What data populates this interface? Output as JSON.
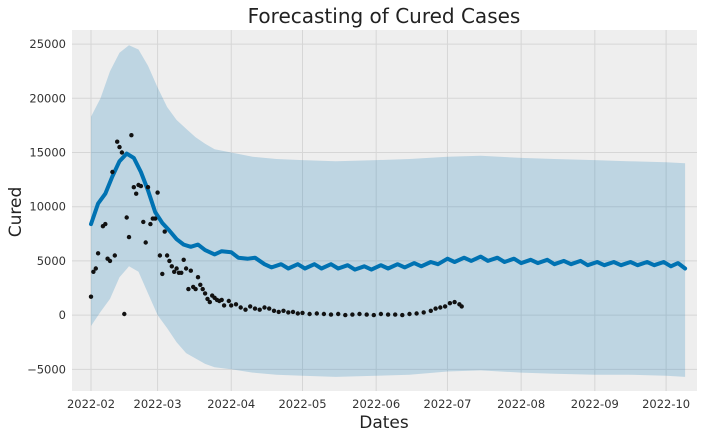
{
  "chart_data": {
    "type": "line",
    "title": "Forecasting of Cured Cases",
    "xlabel": "Dates",
    "ylabel": "Cured",
    "x_ticks": [
      "2022-02",
      "2022-03",
      "2022-04",
      "2022-05",
      "2022-06",
      "2022-07",
      "2022-08",
      "2022-09",
      "2022-10"
    ],
    "y_ticks": [
      -5000,
      0,
      5000,
      10000,
      15000,
      20000,
      25000
    ],
    "xlim": [
      "2022-01-24",
      "2022-10-14"
    ],
    "ylim": [
      -7000,
      26300
    ],
    "grid": true,
    "colors": {
      "forecast": "#0072b2",
      "interval": "#0072b2",
      "observed": "#111111",
      "plot_background": "#eeeeee",
      "grid": "#d6d6d6"
    },
    "forecast": [
      [
        "2022-02-01",
        8400
      ],
      [
        "2022-02-04",
        10300
      ],
      [
        "2022-02-07",
        11200
      ],
      [
        "2022-02-10",
        12800
      ],
      [
        "2022-02-13",
        14200
      ],
      [
        "2022-02-16",
        14900
      ],
      [
        "2022-02-19",
        14500
      ],
      [
        "2022-02-22",
        13200
      ],
      [
        "2022-02-25",
        11500
      ],
      [
        "2022-02-28",
        9500
      ],
      [
        "2022-03-03",
        8500
      ],
      [
        "2022-03-06",
        7800
      ],
      [
        "2022-03-09",
        7000
      ],
      [
        "2022-03-12",
        6500
      ],
      [
        "2022-03-15",
        6300
      ],
      [
        "2022-03-18",
        6500
      ],
      [
        "2022-03-21",
        6000
      ],
      [
        "2022-03-25",
        5600
      ],
      [
        "2022-03-28",
        5900
      ],
      [
        "2022-04-01",
        5800
      ],
      [
        "2022-04-04",
        5300
      ],
      [
        "2022-04-08",
        5200
      ],
      [
        "2022-04-11",
        5300
      ],
      [
        "2022-04-15",
        4700
      ],
      [
        "2022-04-18",
        4400
      ],
      [
        "2022-04-22",
        4700
      ],
      [
        "2022-04-25",
        4300
      ],
      [
        "2022-04-29",
        4700
      ],
      [
        "2022-05-02",
        4300
      ],
      [
        "2022-05-06",
        4700
      ],
      [
        "2022-05-09",
        4300
      ],
      [
        "2022-05-13",
        4700
      ],
      [
        "2022-05-16",
        4300
      ],
      [
        "2022-05-20",
        4600
      ],
      [
        "2022-05-23",
        4200
      ],
      [
        "2022-05-27",
        4500
      ],
      [
        "2022-05-30",
        4200
      ],
      [
        "2022-06-03",
        4600
      ],
      [
        "2022-06-06",
        4300
      ],
      [
        "2022-06-10",
        4700
      ],
      [
        "2022-06-13",
        4400
      ],
      [
        "2022-06-17",
        4800
      ],
      [
        "2022-06-20",
        4500
      ],
      [
        "2022-06-24",
        4900
      ],
      [
        "2022-06-27",
        4700
      ],
      [
        "2022-07-01",
        5200
      ],
      [
        "2022-07-04",
        4900
      ],
      [
        "2022-07-08",
        5300
      ],
      [
        "2022-07-11",
        5000
      ],
      [
        "2022-07-15",
        5400
      ],
      [
        "2022-07-18",
        5000
      ],
      [
        "2022-07-22",
        5300
      ],
      [
        "2022-07-25",
        4900
      ],
      [
        "2022-07-29",
        5200
      ],
      [
        "2022-08-01",
        4800
      ],
      [
        "2022-08-05",
        5100
      ],
      [
        "2022-08-08",
        4800
      ],
      [
        "2022-08-12",
        5100
      ],
      [
        "2022-08-15",
        4700
      ],
      [
        "2022-08-19",
        5000
      ],
      [
        "2022-08-22",
        4700
      ],
      [
        "2022-08-26",
        5000
      ],
      [
        "2022-08-29",
        4600
      ],
      [
        "2022-09-02",
        4900
      ],
      [
        "2022-09-05",
        4600
      ],
      [
        "2022-09-09",
        4900
      ],
      [
        "2022-09-12",
        4600
      ],
      [
        "2022-09-16",
        4900
      ],
      [
        "2022-09-19",
        4600
      ],
      [
        "2022-09-23",
        4900
      ],
      [
        "2022-09-26",
        4600
      ],
      [
        "2022-09-30",
        4900
      ],
      [
        "2022-10-03",
        4500
      ],
      [
        "2022-10-06",
        4800
      ],
      [
        "2022-10-09",
        4300
      ]
    ],
    "interval": [
      [
        "2022-02-01",
        -1000,
        18300
      ],
      [
        "2022-02-05",
        300,
        20000
      ],
      [
        "2022-02-09",
        1500,
        22500
      ],
      [
        "2022-02-13",
        3500,
        24200
      ],
      [
        "2022-02-17",
        4500,
        24900
      ],
      [
        "2022-02-21",
        4000,
        24500
      ],
      [
        "2022-02-25",
        2000,
        23000
      ],
      [
        "2022-03-01",
        0,
        21000
      ],
      [
        "2022-03-05",
        -1200,
        19200
      ],
      [
        "2022-03-09",
        -2500,
        18000
      ],
      [
        "2022-03-13",
        -3500,
        17200
      ],
      [
        "2022-03-17",
        -4000,
        16400
      ],
      [
        "2022-03-21",
        -4500,
        15800
      ],
      [
        "2022-03-25",
        -4800,
        15300
      ],
      [
        "2022-04-01",
        -5000,
        15000
      ],
      [
        "2022-04-10",
        -5300,
        14600
      ],
      [
        "2022-04-20",
        -5500,
        14400
      ],
      [
        "2022-05-01",
        -5600,
        14300
      ],
      [
        "2022-05-15",
        -5700,
        14200
      ],
      [
        "2022-06-01",
        -5600,
        14300
      ],
      [
        "2022-06-15",
        -5500,
        14400
      ],
      [
        "2022-07-01",
        -5200,
        14600
      ],
      [
        "2022-07-15",
        -5100,
        14700
      ],
      [
        "2022-08-01",
        -5300,
        14500
      ],
      [
        "2022-08-15",
        -5400,
        14400
      ],
      [
        "2022-09-01",
        -5500,
        14300
      ],
      [
        "2022-09-15",
        -5500,
        14200
      ],
      [
        "2022-10-01",
        -5600,
        14100
      ],
      [
        "2022-10-09",
        -5700,
        14000
      ]
    ],
    "observed": [
      [
        "2022-02-01",
        1700
      ],
      [
        "2022-02-02",
        4000
      ],
      [
        "2022-02-03",
        4300
      ],
      [
        "2022-02-04",
        5700
      ],
      [
        "2022-02-06",
        8200
      ],
      [
        "2022-02-07",
        8400
      ],
      [
        "2022-02-08",
        5200
      ],
      [
        "2022-02-09",
        5000
      ],
      [
        "2022-02-10",
        13200
      ],
      [
        "2022-02-11",
        5500
      ],
      [
        "2022-02-12",
        16000
      ],
      [
        "2022-02-13",
        15500
      ],
      [
        "2022-02-14",
        15000
      ],
      [
        "2022-02-15",
        100
      ],
      [
        "2022-02-16",
        9000
      ],
      [
        "2022-02-17",
        7200
      ],
      [
        "2022-02-18",
        16600
      ],
      [
        "2022-02-19",
        11800
      ],
      [
        "2022-02-20",
        11200
      ],
      [
        "2022-02-21",
        12000
      ],
      [
        "2022-02-22",
        11900
      ],
      [
        "2022-02-23",
        8600
      ],
      [
        "2022-02-24",
        6700
      ],
      [
        "2022-02-25",
        11800
      ],
      [
        "2022-02-26",
        8400
      ],
      [
        "2022-02-27",
        8900
      ],
      [
        "2022-02-28",
        8900
      ],
      [
        "2022-03-01",
        11300
      ],
      [
        "2022-03-02",
        5500
      ],
      [
        "2022-03-03",
        3800
      ],
      [
        "2022-03-04",
        7700
      ],
      [
        "2022-03-05",
        5500
      ],
      [
        "2022-03-06",
        5000
      ],
      [
        "2022-03-07",
        4500
      ],
      [
        "2022-03-08",
        4000
      ],
      [
        "2022-03-09",
        4300
      ],
      [
        "2022-03-10",
        3900
      ],
      [
        "2022-03-11",
        3900
      ],
      [
        "2022-03-12",
        5100
      ],
      [
        "2022-03-13",
        4300
      ],
      [
        "2022-03-14",
        2400
      ],
      [
        "2022-03-15",
        4100
      ],
      [
        "2022-03-16",
        2600
      ],
      [
        "2022-03-17",
        2400
      ],
      [
        "2022-03-18",
        3500
      ],
      [
        "2022-03-19",
        2800
      ],
      [
        "2022-03-20",
        2400
      ],
      [
        "2022-03-21",
        2000
      ],
      [
        "2022-03-22",
        1500
      ],
      [
        "2022-03-23",
        1200
      ],
      [
        "2022-03-24",
        1800
      ],
      [
        "2022-03-25",
        1600
      ],
      [
        "2022-03-26",
        1400
      ],
      [
        "2022-03-27",
        1300
      ],
      [
        "2022-03-28",
        1400
      ],
      [
        "2022-03-29",
        900
      ],
      [
        "2022-03-31",
        1300
      ],
      [
        "2022-04-01",
        900
      ],
      [
        "2022-04-03",
        1000
      ],
      [
        "2022-04-05",
        700
      ],
      [
        "2022-04-07",
        500
      ],
      [
        "2022-04-09",
        800
      ],
      [
        "2022-04-11",
        600
      ],
      [
        "2022-04-13",
        500
      ],
      [
        "2022-04-15",
        700
      ],
      [
        "2022-04-17",
        600
      ],
      [
        "2022-04-19",
        400
      ],
      [
        "2022-04-21",
        300
      ],
      [
        "2022-04-23",
        400
      ],
      [
        "2022-04-25",
        250
      ],
      [
        "2022-04-27",
        300
      ],
      [
        "2022-04-29",
        150
      ],
      [
        "2022-05-01",
        200
      ],
      [
        "2022-05-04",
        100
      ],
      [
        "2022-05-07",
        150
      ],
      [
        "2022-05-10",
        100
      ],
      [
        "2022-05-13",
        50
      ],
      [
        "2022-05-16",
        100
      ],
      [
        "2022-05-19",
        0
      ],
      [
        "2022-05-22",
        50
      ],
      [
        "2022-05-25",
        100
      ],
      [
        "2022-05-28",
        50
      ],
      [
        "2022-05-31",
        0
      ],
      [
        "2022-06-03",
        100
      ],
      [
        "2022-06-06",
        50
      ],
      [
        "2022-06-09",
        50
      ],
      [
        "2022-06-12",
        0
      ],
      [
        "2022-06-15",
        100
      ],
      [
        "2022-06-18",
        150
      ],
      [
        "2022-06-21",
        250
      ],
      [
        "2022-06-24",
        400
      ],
      [
        "2022-06-26",
        600
      ],
      [
        "2022-06-28",
        700
      ],
      [
        "2022-06-30",
        800
      ],
      [
        "2022-07-02",
        1100
      ],
      [
        "2022-07-04",
        1200
      ],
      [
        "2022-07-06",
        1000
      ],
      [
        "2022-07-07",
        800
      ]
    ]
  }
}
